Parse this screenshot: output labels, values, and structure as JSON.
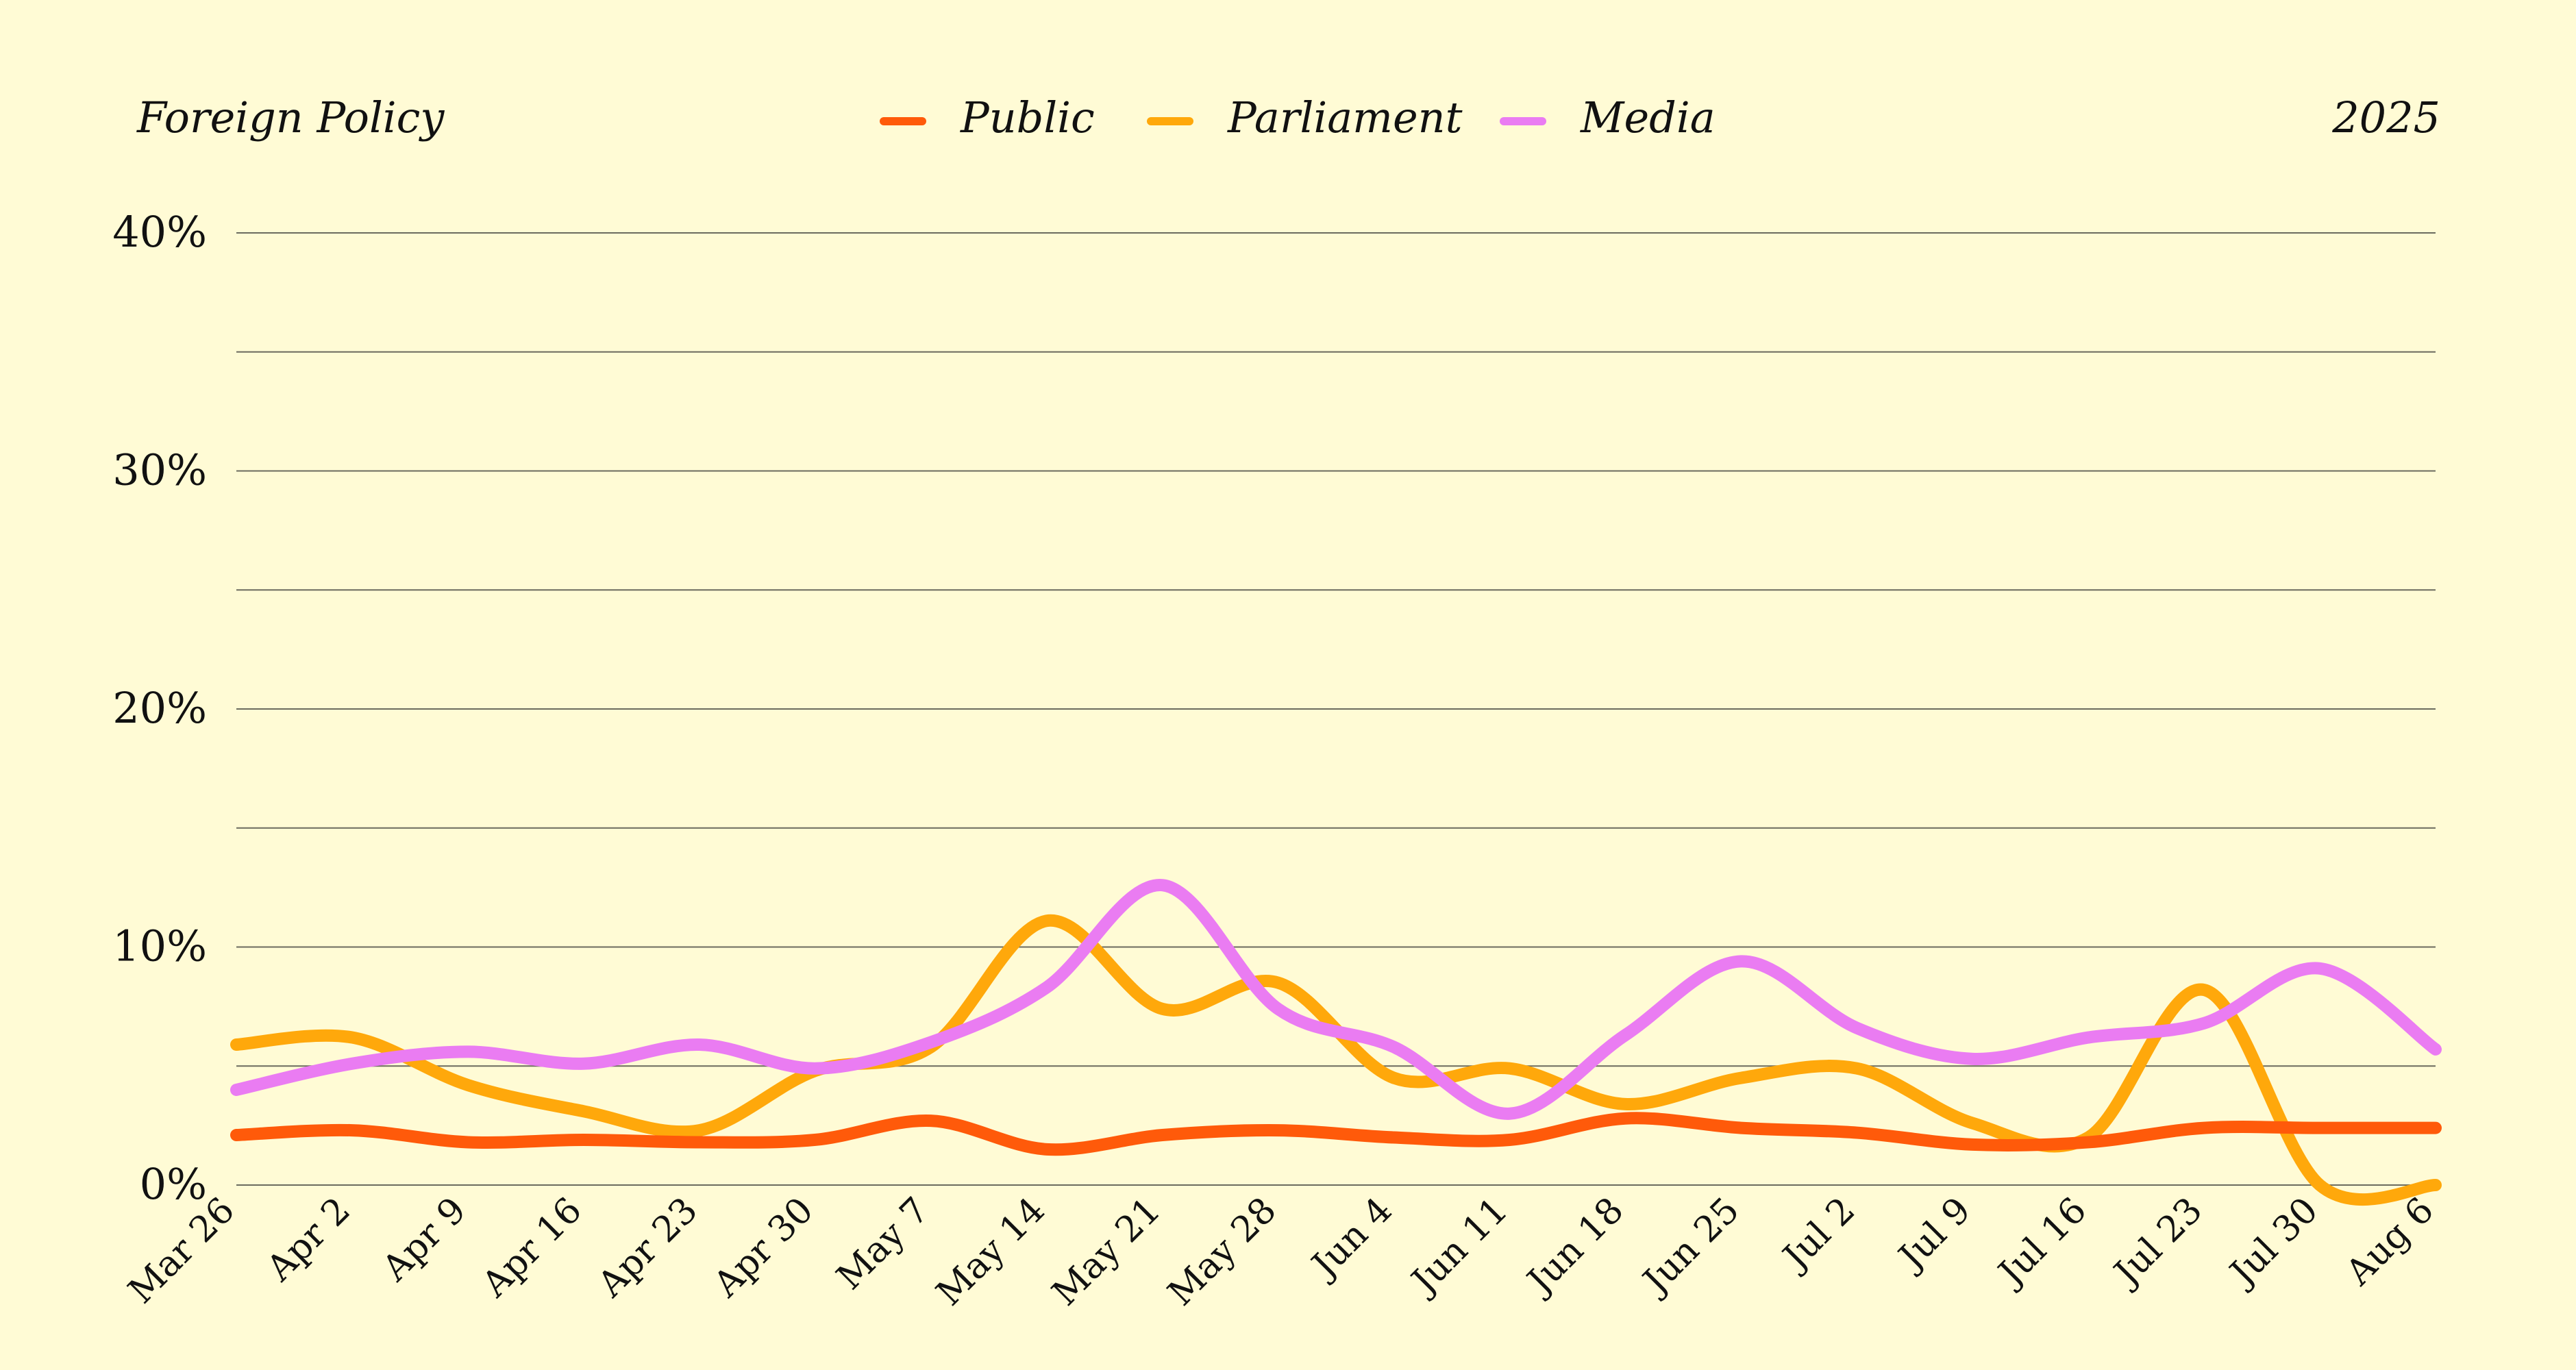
{
  "header": {
    "left_title": "Foreign Policy",
    "right_year": "2025"
  },
  "chart_data": {
    "type": "line",
    "x": [
      "Mar 26",
      "Apr 2",
      "Apr 9",
      "Apr 16",
      "Apr 23",
      "Apr 30",
      "May 7",
      "May 14",
      "May 21",
      "May 28",
      "Jun 4",
      "Jun 11",
      "Jun 18",
      "Jun 25",
      "Jul 2",
      "Jul 9",
      "Jul 16",
      "Jul 23",
      "Jul 30",
      "Aug 6"
    ],
    "y_ticks": [
      0,
      10,
      20,
      30,
      40
    ],
    "y_tick_labels": [
      "0%",
      "10%",
      "20%",
      "30%",
      "40%"
    ],
    "ylim": [
      0,
      40
    ],
    "grid": true,
    "minor_gridlines_every": 5,
    "legend_position": "top-center",
    "series": [
      {
        "name": "Public",
        "color": "#ff5a0a",
        "values": [
          2.1,
          2.3,
          1.8,
          1.9,
          1.8,
          1.9,
          2.7,
          1.5,
          2.1,
          2.3,
          2.0,
          1.9,
          2.8,
          2.4,
          2.2,
          1.7,
          1.8,
          2.4,
          2.4,
          2.4
        ]
      },
      {
        "name": "Parliament",
        "color": "#ffa80b",
        "values": [
          5.9,
          6.2,
          4.2,
          3.1,
          2.3,
          4.8,
          5.8,
          11.1,
          7.4,
          8.5,
          4.5,
          4.9,
          3.4,
          4.5,
          4.9,
          2.6,
          2.0,
          8.2,
          0.0,
          0.0
        ]
      },
      {
        "name": "Media",
        "color": "#ea7cf2",
        "values": [
          4.0,
          5.1,
          5.6,
          5.1,
          5.9,
          4.9,
          6.0,
          8.3,
          12.6,
          7.4,
          5.8,
          3.0,
          6.3,
          9.4,
          6.6,
          5.3,
          6.2,
          6.8,
          9.1,
          5.7
        ]
      }
    ]
  }
}
